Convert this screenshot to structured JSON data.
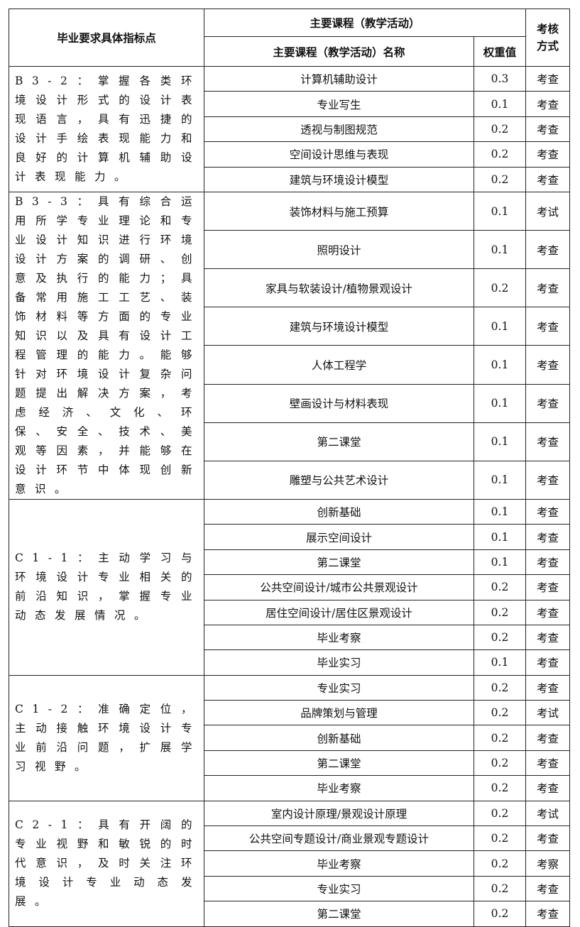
{
  "header": {
    "indicator": "毕业要求具体指标点",
    "courses_group": "主要课程（教学活动）",
    "course_name": "主要课程（教学活动）名称",
    "weight": "权重值",
    "assessment": "考核方式"
  },
  "groups": [
    {
      "indicator": "B3-2：掌握各类环境设计形式的设计表现语言，具有迅捷的设计手绘表现能力和良好的计算机辅助设计表现能力。",
      "rows": [
        [
          "计算机辅助设计",
          "0.3",
          "考查"
        ],
        [
          "专业写生",
          "0.1",
          "考查"
        ],
        [
          "透视与制图规范",
          "0.2",
          "考查"
        ],
        [
          "空间设计思维与表现",
          "0.2",
          "考查"
        ],
        [
          "建筑与环境设计模型",
          "0.2",
          "考查"
        ]
      ]
    },
    {
      "indicator": "B3-3：具有综合运用所学专业理论和专业设计知识进行环境设计方案的调研、创意及执行的能力；具备常用施工工艺、装饰材料等方面的专业知识以及具有设计工程管理的能力。能够针对环境设计复杂问题提出解决方案，考虑经济、文化、环保、安全、技术、美观等因素，并能够在设计环节中体现创新意识。",
      "rows": [
        [
          "装饰材料与施工预算",
          "0.1",
          "考试"
        ],
        [
          "照明设计",
          "0.1",
          "考查"
        ],
        [
          "家具与软装设计/植物景观设计",
          "0.2",
          "考查"
        ],
        [
          "建筑与环境设计模型",
          "0.1",
          "考查"
        ],
        [
          "人体工程学",
          "0.1",
          "考查"
        ],
        [
          "壁画设计与材料表现",
          "0.1",
          "考查"
        ],
        [
          "第二课堂",
          "0.1",
          "考查"
        ],
        [
          "雕塑与公共艺术设计",
          "0.1",
          "考查"
        ]
      ]
    },
    {
      "indicator": "C1-1：主动学习与环境设计专业相关的前沿知识，掌握专业动态发展情况。",
      "rows": [
        [
          "创新基础",
          "0.1",
          "考查"
        ],
        [
          "展示空间设计",
          "0.1",
          "考查"
        ],
        [
          "第二课堂",
          "0.1",
          "考查"
        ],
        [
          "公共空间设计/城市公共景观设计",
          "0.2",
          "考查"
        ],
        [
          "居住空间设计/居住区景观设计",
          "0.2",
          "考查"
        ],
        [
          "毕业考察",
          "0.2",
          "考查"
        ],
        [
          "毕业实习",
          "0.1",
          "考查"
        ]
      ]
    },
    {
      "indicator": "C1-2：准确定位，主动接触环境设计专业前沿问题，扩展学习视野。",
      "rows": [
        [
          "专业实习",
          "0.2",
          "考查"
        ],
        [
          "品牌策划与管理",
          "0.2",
          "考试"
        ],
        [
          "创新基础",
          "0.2",
          "考查"
        ],
        [
          "第二课堂",
          "0.2",
          "考查"
        ],
        [
          "毕业考察",
          "0.2",
          "考查"
        ]
      ]
    },
    {
      "indicator": "C2-1：具有开阔的专业视野和敏锐的时代意识，及时关注环境设计专业动态发展。",
      "rows": [
        [
          "室内设计原理/景观设计原理",
          "0.2",
          "考试"
        ],
        [
          "公共空间专题设计/商业景观专题设计",
          "0.2",
          "考查"
        ],
        [
          "毕业考察",
          "0.2",
          "考察"
        ],
        [
          "专业实习",
          "0.2",
          "考查"
        ],
        [
          "第二课堂",
          "0.2",
          "考查"
        ]
      ]
    }
  ]
}
